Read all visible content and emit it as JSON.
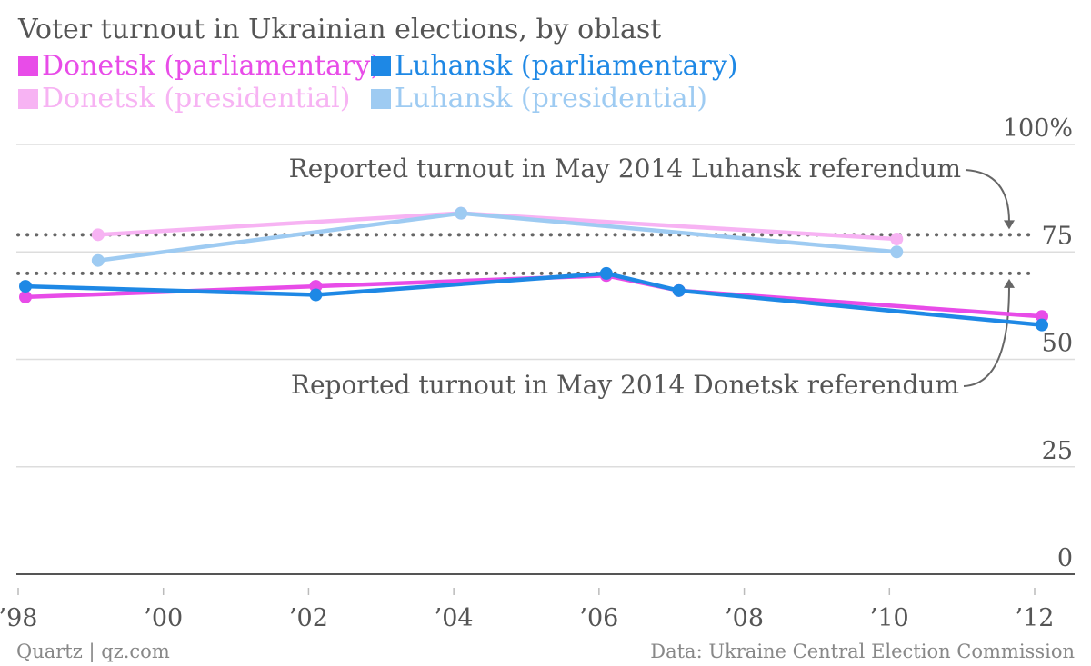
{
  "chart_data": {
    "type": "line",
    "title": "Voter turnout in Ukrainian elections, by oblast",
    "x_tick_labels": [
      "’98",
      "’00",
      "’02",
      "’04",
      "’06",
      "’08",
      "’10",
      "’12"
    ],
    "x_ticks": [
      1998,
      2000,
      2002,
      2004,
      2006,
      2008,
      2010,
      2012
    ],
    "xlim": [
      1998,
      2012
    ],
    "y_tick_labels": [
      "100%",
      "75",
      "50",
      "25",
      "0"
    ],
    "y_ticks": [
      100,
      75,
      50,
      25,
      0
    ],
    "ylim": [
      0,
      100
    ],
    "grid": true,
    "legend_position": "top-left",
    "series": [
      {
        "name": "Donetsk (parliamentary)",
        "color": "#e84ce8",
        "points": [
          [
            1998,
            64.5
          ],
          [
            2002,
            67
          ],
          [
            2006,
            69.5
          ],
          [
            2007,
            66
          ],
          [
            2012,
            60
          ]
        ]
      },
      {
        "name": "Luhansk (parliamentary)",
        "color": "#1e88e5",
        "points": [
          [
            1998,
            67
          ],
          [
            2002,
            65
          ],
          [
            2006,
            70
          ],
          [
            2007,
            66
          ],
          [
            2012,
            58
          ]
        ]
      },
      {
        "name": "Donetsk (presidential)",
        "color": "#f7b3f3",
        "points": [
          [
            1999,
            79
          ],
          [
            2004,
            84
          ],
          [
            2010,
            78
          ]
        ]
      },
      {
        "name": "Luhansk (presidential)",
        "color": "#9ecbf2",
        "points": [
          [
            1999,
            73
          ],
          [
            2004,
            84
          ],
          [
            2010,
            75
          ]
        ]
      }
    ],
    "reference_lines": [
      {
        "value": 79,
        "label": "Reported turnout in May 2014 Luhansk referendum"
      },
      {
        "value": 70,
        "label": "Reported turnout in May 2014 Donetsk referendum"
      }
    ],
    "source": "Data: Ukraine Central Election Commission",
    "credit": "Quartz | qz.com"
  }
}
